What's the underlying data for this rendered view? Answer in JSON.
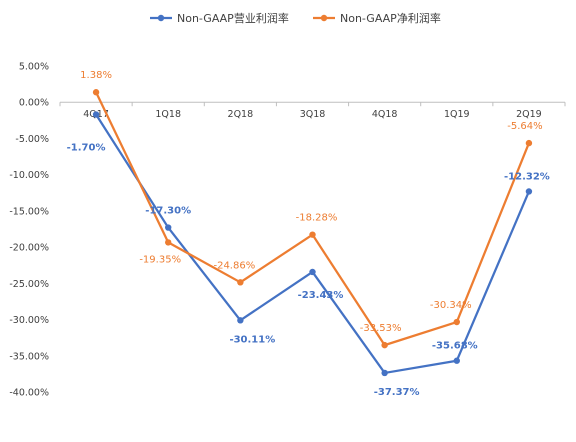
{
  "chart_data": {
    "type": "line",
    "categories": [
      "4Q17",
      "1Q18",
      "2Q18",
      "3Q18",
      "4Q18",
      "1Q19",
      "2Q19"
    ],
    "series": [
      {
        "name": "Non-GAAP营业利润率",
        "values": [
          -1.7,
          -17.3,
          -30.11,
          -23.43,
          -37.37,
          -35.68,
          -12.32
        ],
        "labels": [
          "-1.70%",
          "-17.30%",
          "-30.11%",
          "-23.43%",
          "-37.37%",
          "-35.68%",
          "-12.32%"
        ],
        "color": "#4472C4"
      },
      {
        "name": "Non-GAAP净利润率",
        "values": [
          1.38,
          -19.35,
          -24.86,
          -18.28,
          -33.53,
          -30.34,
          -5.64
        ],
        "labels": [
          "1.38%",
          "-19.35%",
          "-24.86%",
          "-18.28%",
          "-33.53%",
          "-30.34%",
          "-5.64%"
        ],
        "color": "#ED7D31"
      }
    ],
    "ylim": [
      -40,
      5
    ],
    "yticks": [
      5,
      0,
      -5,
      -10,
      -15,
      -20,
      -25,
      -30,
      -35,
      -40
    ],
    "ytick_labels": [
      "5.00%",
      "0.00%",
      "-5.00%",
      "-10.00%",
      "-15.00%",
      "-20.00%",
      "-25.00%",
      "-30.00%",
      "-35.00%",
      "-40.00%"
    ],
    "legend_position": "top-center",
    "grid": false
  }
}
